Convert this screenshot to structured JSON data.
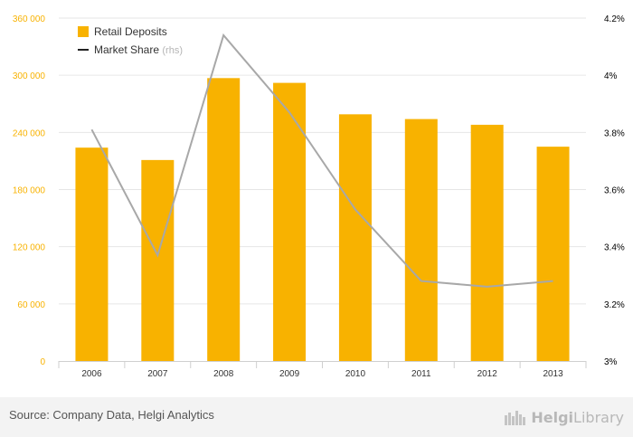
{
  "chart_data": {
    "type": "bar",
    "categories": [
      "2006",
      "2007",
      "2008",
      "2009",
      "2010",
      "2011",
      "2012",
      "2013"
    ],
    "series": [
      {
        "name": "Retail Deposits",
        "type": "bar",
        "axis": "left",
        "color": "#f8b200",
        "values": [
          224000,
          211000,
          297000,
          292000,
          259000,
          254000,
          248000,
          225000
        ]
      },
      {
        "name": "Market Share",
        "type": "line",
        "axis": "right",
        "color": "#a8a8a8",
        "values": [
          3.81,
          3.37,
          4.14,
          3.87,
          3.53,
          3.28,
          3.26,
          3.28
        ]
      }
    ],
    "legend": {
      "position": "top-left",
      "items": [
        {
          "label": "Retail Deposits",
          "suffix": ""
        },
        {
          "label": "Market Share",
          "suffix": "(rhs)"
        }
      ]
    },
    "left_axis": {
      "ylim": [
        0,
        360000
      ],
      "ticks": [
        0,
        60000,
        120000,
        180000,
        240000,
        300000,
        360000
      ],
      "tick_labels": [
        "0",
        "60 000",
        "120 000",
        "180 000",
        "240 000",
        "300 000",
        "360 000"
      ],
      "label_color": "#f8b200"
    },
    "right_axis": {
      "ylim": [
        3.0,
        4.2
      ],
      "ticks": [
        3.0,
        3.2,
        3.4,
        3.6,
        3.8,
        4.0,
        4.2
      ],
      "tick_labels": [
        "3%",
        "3.2%",
        "3.4%",
        "3.6%",
        "3.8%",
        "4%",
        "4.2%"
      ],
      "label_color": "#000000"
    },
    "grid": true
  },
  "footer": {
    "source": "Source: Company Data, Helgi Analytics",
    "logo_text_bold": "Helgi",
    "logo_text": "Library"
  }
}
